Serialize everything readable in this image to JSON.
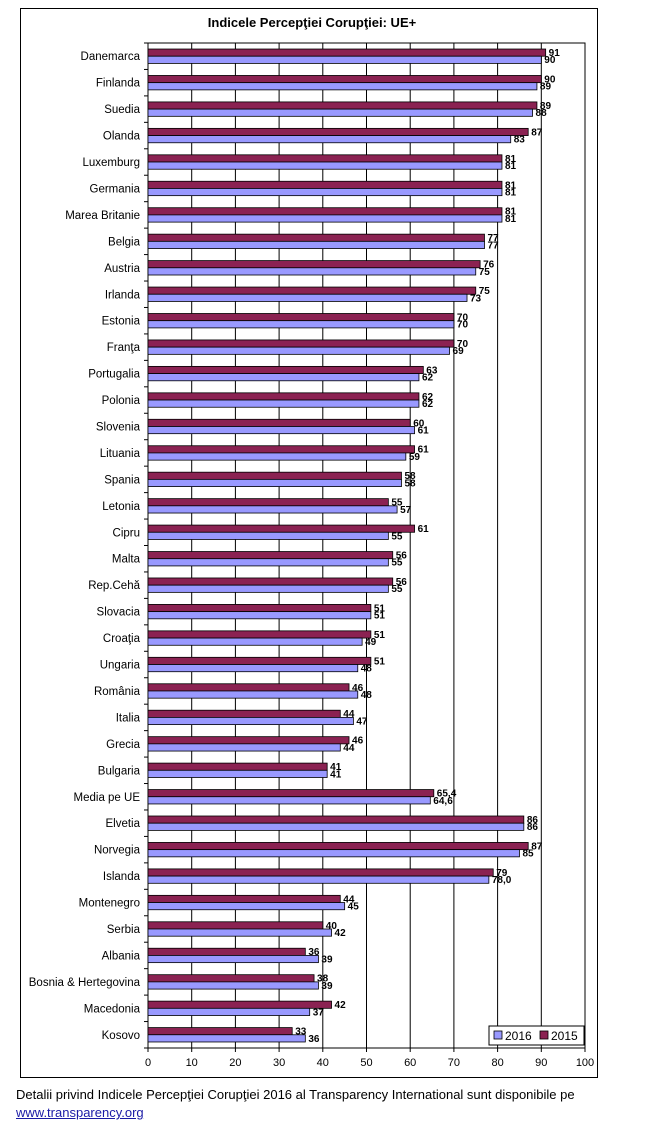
{
  "chart_data": {
    "type": "bar",
    "orientation": "horizontal",
    "title": "Indicele Percepţiei Corupţiei: UE+",
    "xlim": [
      0,
      100
    ],
    "x_ticks": [
      "0",
      "10",
      "20",
      "30",
      "40",
      "50",
      "60",
      "70",
      "80",
      "90",
      "100"
    ],
    "legend_position": "bottom-right",
    "gridlines": "vertical",
    "categories": [
      "Danemarca",
      "Finlanda",
      "Suedia",
      "Olanda",
      "Luxemburg",
      "Germania",
      "Marea Britanie",
      "Belgia",
      "Austria",
      "Irlanda",
      "Estonia",
      "Franţa",
      "Portugalia",
      "Polonia",
      "Slovenia",
      "Lituania",
      "Spania",
      "Letonia",
      "Cipru",
      "Malta",
      "Rep.Cehă",
      "Slovacia",
      "Croaţia",
      "Ungaria",
      "România",
      "Italia",
      "Grecia",
      "Bulgaria",
      "Media pe UE",
      "Elvetia",
      "Norvegia",
      "Islanda",
      "Montenegro",
      "Serbia",
      "Albania",
      "Bosnia & Hertegovina",
      "Macedonia",
      "Kosovo"
    ],
    "series": [
      {
        "name": "2015",
        "color": "#8b2252",
        "values": [
          91,
          90,
          89,
          87,
          81,
          81,
          81,
          77,
          76,
          75,
          70,
          70,
          63,
          62,
          60,
          61,
          58,
          55,
          61,
          56,
          56,
          51,
          51,
          51,
          46,
          44,
          46,
          41,
          65.4,
          86,
          87,
          79,
          44,
          40,
          36,
          38,
          42,
          33
        ],
        "labels": [
          "91",
          "90",
          "89",
          "87",
          "81",
          "81",
          "81",
          "77",
          "76",
          "75",
          "70",
          "70",
          "63",
          "62",
          "60",
          "61",
          "58",
          "55",
          "61",
          "56",
          "56",
          "51",
          "51",
          "51",
          "46",
          "44",
          "46",
          "41",
          "65,4",
          "86",
          "87",
          "79",
          "44",
          "40",
          "36",
          "38",
          "42",
          "33"
        ]
      },
      {
        "name": "2016",
        "color": "#9999ff",
        "values": [
          90,
          89,
          88,
          83,
          81,
          81,
          81,
          77,
          75,
          73,
          70,
          69,
          62,
          62,
          61,
          59,
          58,
          57,
          55,
          55,
          55,
          51,
          49,
          48,
          48,
          47,
          44,
          41,
          64.6,
          86,
          85,
          78.0,
          45,
          42,
          39,
          39,
          37,
          36
        ],
        "labels": [
          "90",
          "89",
          "88",
          "83",
          "81",
          "81",
          "81",
          "77",
          "75",
          "73",
          "70",
          "69",
          "62",
          "62",
          "61",
          "59",
          "58",
          "57",
          "55",
          "55",
          "55",
          "51",
          "49",
          "48",
          "48",
          "47",
          "44",
          "41",
          "64,6",
          "86",
          "85",
          "78,0",
          "45",
          "42",
          "39",
          "39",
          "37",
          "36"
        ]
      }
    ],
    "legend_order": [
      "2016",
      "2015"
    ]
  },
  "footer": {
    "text": "Detalii privind Indicele Percepţiei Corupţiei 2016 al Transparency International sunt  disponibile pe",
    "link": "www.transparency.org"
  }
}
